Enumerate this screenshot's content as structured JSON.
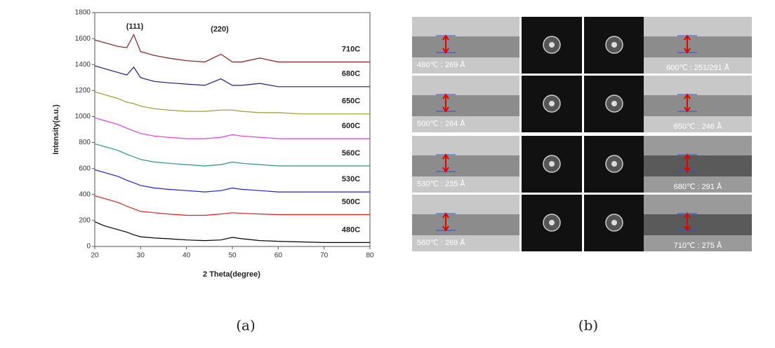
{
  "chart_data": {
    "type": "line",
    "xlabel": "2 Theta(degree)",
    "ylabel": "Intensity(a.u.)",
    "annotations": [
      "(111)",
      "(220)"
    ],
    "x": [
      20,
      22,
      25,
      27,
      28.5,
      30,
      33,
      36,
      40,
      44,
      47.5,
      50,
      52,
      56,
      60,
      65,
      70,
      80
    ],
    "series": [
      {
        "name": "710C",
        "color": "#8b1a1a",
        "values": [
          1590,
          1570,
          1540,
          1530,
          1630,
          1500,
          1470,
          1450,
          1430,
          1420,
          1480,
          1420,
          1420,
          1450,
          1420,
          1420,
          1420,
          1420
        ]
      },
      {
        "name": "680C",
        "color": "#1a1a8b",
        "values": [
          1390,
          1370,
          1340,
          1320,
          1380,
          1300,
          1270,
          1260,
          1250,
          1240,
          1290,
          1240,
          1240,
          1255,
          1230,
          1230,
          1230,
          1230
        ]
      },
      {
        "name": "650C",
        "color": "#9a9a30",
        "values": [
          1190,
          1170,
          1140,
          1110,
          1100,
          1080,
          1060,
          1050,
          1040,
          1040,
          1050,
          1050,
          1040,
          1030,
          1030,
          1020,
          1020,
          1020
        ]
      },
      {
        "name": "600C",
        "color": "#e040e0",
        "values": [
          990,
          970,
          940,
          910,
          890,
          870,
          850,
          840,
          830,
          830,
          840,
          860,
          850,
          840,
          830,
          830,
          830,
          830
        ]
      },
      {
        "name": "560C",
        "color": "#2a9090",
        "values": [
          790,
          770,
          740,
          710,
          690,
          670,
          650,
          640,
          630,
          620,
          630,
          650,
          640,
          630,
          620,
          620,
          620,
          620
        ]
      },
      {
        "name": "530C",
        "color": "#2020e0",
        "values": [
          590,
          570,
          540,
          510,
          490,
          470,
          450,
          440,
          430,
          420,
          430,
          450,
          440,
          430,
          420,
          420,
          420,
          420
        ]
      },
      {
        "name": "500C",
        "color": "#e02020",
        "values": [
          390,
          370,
          340,
          310,
          290,
          270,
          260,
          250,
          240,
          240,
          250,
          260,
          255,
          250,
          245,
          245,
          245,
          245
        ]
      },
      {
        "name": "480C",
        "color": "#000000",
        "values": [
          190,
          160,
          130,
          110,
          90,
          75,
          65,
          60,
          50,
          45,
          50,
          70,
          60,
          45,
          40,
          35,
          30,
          30
        ]
      }
    ],
    "xlim": [
      20,
      80
    ],
    "xticks": [
      20,
      30,
      40,
      50,
      60,
      70,
      80
    ],
    "ylim": [
      0,
      1800
    ],
    "yticks": [
      0,
      200,
      400,
      600,
      800,
      1000,
      1200,
      1400,
      1600,
      1800
    ]
  },
  "images": {
    "left": [
      "480℃ : 269 Å",
      "500℃ : 264 Å",
      "530℃ : 235 Å",
      "560℃ : 269 Å"
    ],
    "right": [
      "600℃ : 251/291 Å",
      "650℃ : 246 Å",
      "680℃ : 291 Å",
      "710℃ : 275 Å"
    ]
  },
  "captions": [
    "(a)",
    "(b)"
  ]
}
